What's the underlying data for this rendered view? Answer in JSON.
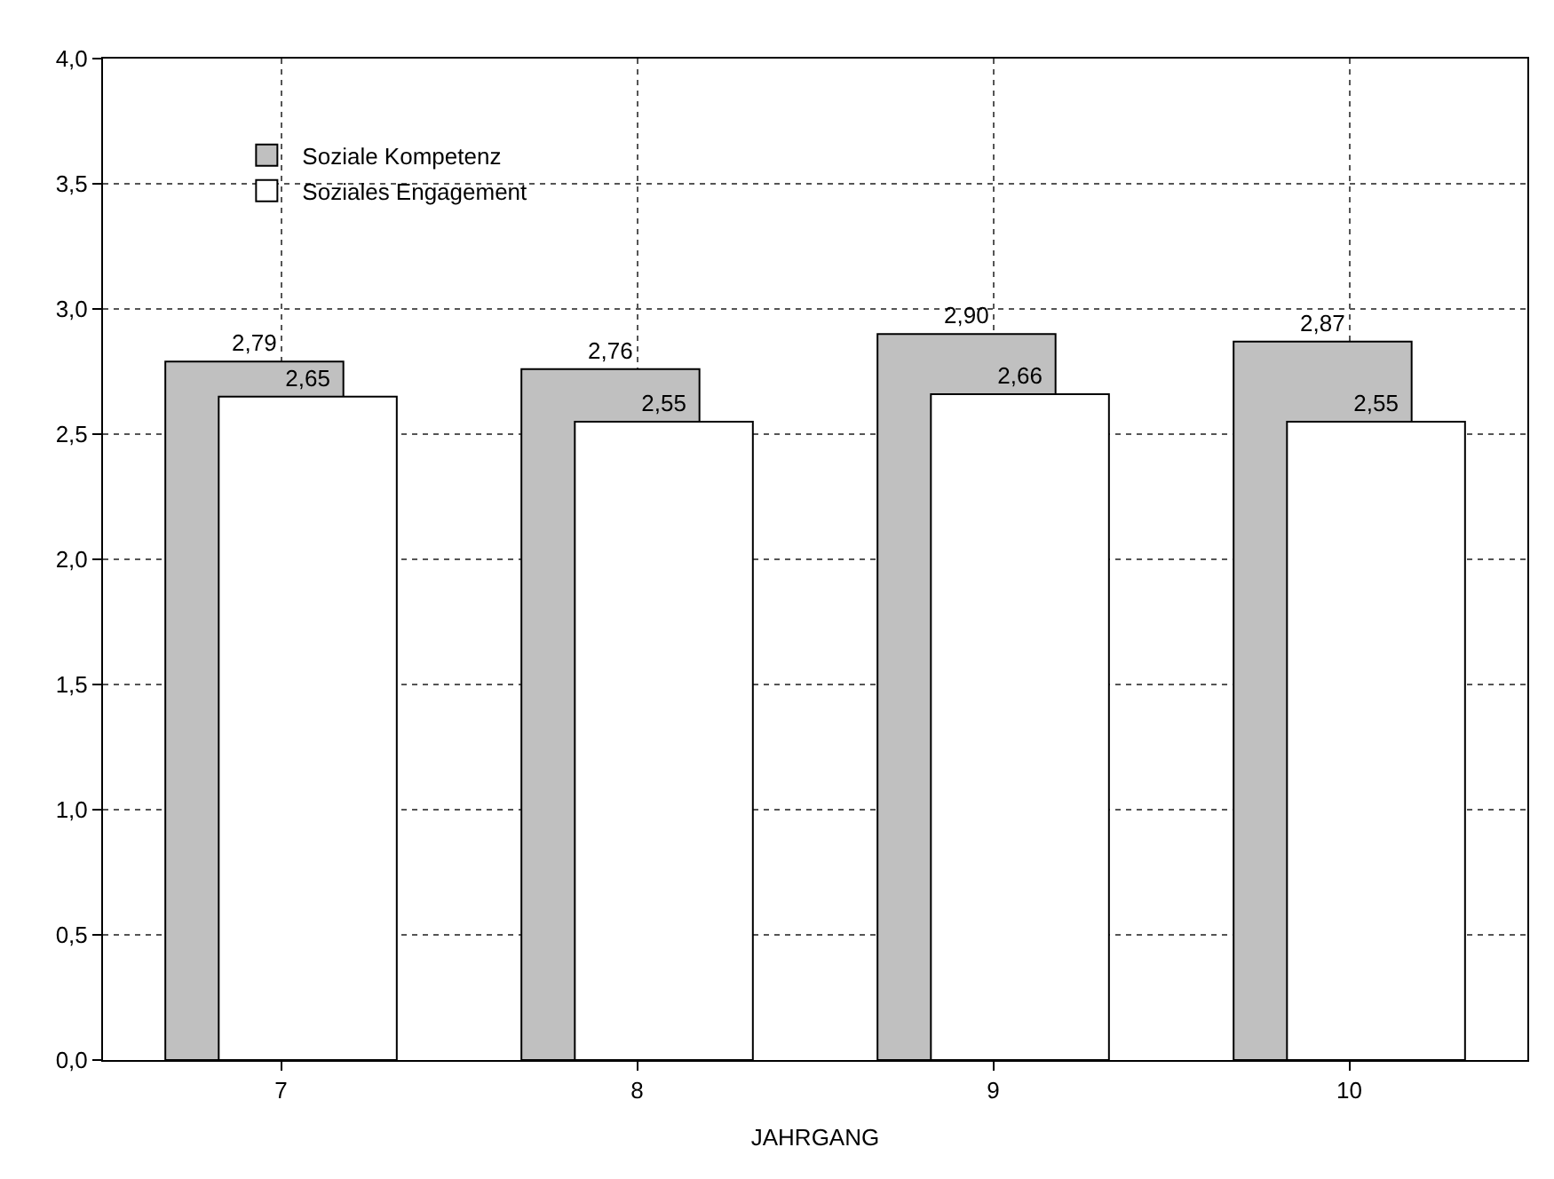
{
  "chart_data": {
    "type": "bar",
    "xlabel": "JAHRGANG",
    "categories": [
      "7",
      "8",
      "9",
      "10"
    ],
    "series": [
      {
        "name": "Soziale Kompetenz",
        "color": "#c0c0c0",
        "values": [
          2.79,
          2.76,
          2.9,
          2.87
        ],
        "value_labels": [
          "2,79",
          "2,76",
          "2,90",
          "2,87"
        ]
      },
      {
        "name": "Soziales Engagement",
        "color": "#ffffff",
        "values": [
          2.65,
          2.55,
          2.66,
          2.55
        ],
        "value_labels": [
          "2,65",
          "2,55",
          "2,66",
          "2,55"
        ]
      }
    ],
    "ylim": [
      0,
      4
    ],
    "yticks": [
      {
        "value": 0,
        "label": "0,0"
      },
      {
        "value": 0.5,
        "label": "0,5"
      },
      {
        "value": 1,
        "label": "1,0"
      },
      {
        "value": 1.5,
        "label": "1,5"
      },
      {
        "value": 2,
        "label": "2,0"
      },
      {
        "value": 2.5,
        "label": "2,5"
      },
      {
        "value": 3,
        "label": "3,0"
      },
      {
        "value": 3.5,
        "label": "3,5"
      },
      {
        "value": 4,
        "label": "4,0"
      }
    ],
    "grid": true,
    "legend": "top left"
  }
}
